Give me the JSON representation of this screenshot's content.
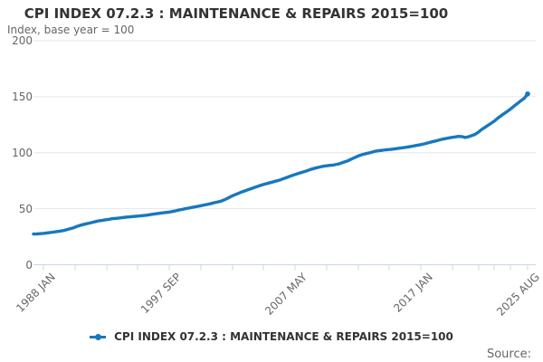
{
  "source": {
    "label": "Source:"
  },
  "colors": {
    "series": "#1878be",
    "grid": "#e6e6e6",
    "axis": "#ccd6eb",
    "title_text": "#333333",
    "muted_text": "#666666"
  },
  "chart_data": {
    "type": "line",
    "title": "CPI INDEX 07.2.3 : MAINTENANCE & REPAIRS 2015=100",
    "subtitle": "Index, base year = 100",
    "x_range": [
      "1988 JAN",
      "2025 AUG"
    ],
    "x_tick_labels": [
      "1988 JAN",
      "1997 SEP",
      "2007 MAY",
      "2017 JAN",
      "2025 AUG"
    ],
    "y_ticks": [
      0,
      50,
      100,
      150,
      200
    ],
    "ylim": [
      0,
      200
    ],
    "grid": "horizontal-only",
    "legend_position": "bottom-center",
    "x_unit": "months since 1988 JAN",
    "sample_interval_months": 3,
    "series": [
      {
        "name": "CPI INDEX 07.2.3 : MAINTENANCE & REPAIRS 2015=100",
        "values": [
          27.4,
          27.5,
          27.7,
          28.0,
          28.4,
          28.7,
          29.1,
          29.6,
          30.0,
          30.5,
          31.2,
          32.0,
          32.8,
          34.0,
          35.0,
          35.8,
          36.5,
          37.2,
          37.9,
          38.6,
          39.3,
          39.7,
          40.2,
          40.6,
          41.1,
          41.4,
          41.7,
          42.1,
          42.4,
          42.7,
          43.0,
          43.2,
          43.5,
          43.8,
          44.1,
          44.5,
          45.0,
          45.4,
          45.8,
          46.2,
          46.6,
          46.9,
          47.4,
          48.0,
          48.7,
          49.3,
          49.9,
          50.5,
          51.1,
          51.6,
          52.2,
          52.8,
          53.4,
          54.0,
          54.7,
          55.4,
          56.1,
          56.8,
          58.0,
          59.4,
          61.0,
          62.3,
          63.5,
          64.7,
          65.8,
          66.8,
          67.8,
          68.9,
          69.9,
          70.9,
          71.8,
          72.6,
          73.4,
          74.2,
          75.0,
          75.9,
          76.9,
          78.0,
          79.1,
          80.2,
          81.1,
          82.0,
          82.9,
          83.8,
          85.0,
          85.8,
          86.6,
          87.3,
          87.9,
          88.3,
          88.7,
          89.0,
          89.6,
          90.3,
          91.4,
          92.3,
          93.6,
          95.0,
          96.3,
          97.6,
          98.5,
          99.2,
          99.9,
          100.7,
          101.5,
          101.9,
          102.2,
          102.6,
          102.9,
          103.2,
          103.6,
          104.0,
          104.4,
          104.8,
          105.3,
          105.8,
          106.4,
          106.9,
          107.5,
          108.2,
          109.0,
          109.7,
          110.5,
          111.2,
          112.0,
          112.6,
          113.1,
          113.7,
          114.1,
          114.6,
          114.4,
          113.6,
          114.2,
          115.2,
          116.4,
          118.2,
          120.6,
          122.6,
          124.5,
          126.5,
          128.5,
          131.0,
          133.2,
          135.2,
          137.3,
          139.5,
          141.9,
          144.2,
          146.5,
          148.7,
          152.5
        ]
      }
    ]
  }
}
